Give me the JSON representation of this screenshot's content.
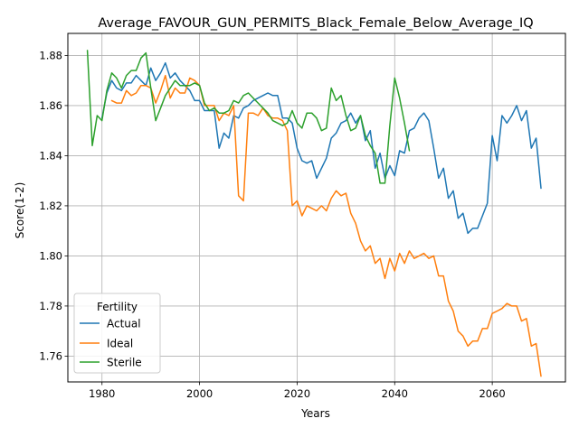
{
  "chart_data": {
    "type": "line",
    "title": "Average_FAVOUR_GUN_PERMITS_Black_Female_Below_Average_IQ",
    "xlabel": "Years",
    "ylabel": "Score(1-2)",
    "xlim": [
      1973,
      2075
    ],
    "ylim": [
      1.7497,
      1.8888
    ],
    "xticks": [
      1980,
      2000,
      2020,
      2040,
      2060
    ],
    "yticks": [
      1.76,
      1.78,
      1.8,
      1.82,
      1.84,
      1.86,
      1.88
    ],
    "ytick_labels": [
      "1.76",
      "1.78",
      "1.80",
      "1.82",
      "1.84",
      "1.86",
      "1.88"
    ],
    "grid": true,
    "legend": {
      "title": "Fertility",
      "position": "bottom-left"
    },
    "series": [
      {
        "name": "Actual",
        "color": "#1f77b4",
        "x": [
          1980,
          1981,
          1982,
          1983,
          1984,
          1985,
          1986,
          1987,
          1988,
          1989,
          1990,
          1991,
          1992,
          1993,
          1994,
          1995,
          1996,
          1997,
          1998,
          1999,
          2000,
          2001,
          2002,
          2003,
          2004,
          2005,
          2006,
          2007,
          2008,
          2009,
          2010,
          2011,
          2012,
          2013,
          2014,
          2015,
          2016,
          2017,
          2018,
          2019,
          2020,
          2021,
          2022,
          2023,
          2024,
          2025,
          2026,
          2027,
          2028,
          2029,
          2030,
          2031,
          2032,
          2033,
          2034,
          2035,
          2036,
          2037,
          2038,
          2039,
          2040,
          2041,
          2042,
          2043,
          2044,
          2045,
          2046,
          2047,
          2048,
          2049,
          2050,
          2051,
          2052,
          2053,
          2054,
          2055,
          2056,
          2057,
          2058,
          2059,
          2060,
          2061,
          2062,
          2063,
          2064,
          2065,
          2066,
          2067,
          2068,
          2069,
          2070
        ],
        "values": [
          1.855,
          1.865,
          1.87,
          1.867,
          1.866,
          1.869,
          1.869,
          1.872,
          1.87,
          1.868,
          1.875,
          1.87,
          1.873,
          1.877,
          1.871,
          1.873,
          1.87,
          1.868,
          1.866,
          1.862,
          1.862,
          1.858,
          1.858,
          1.858,
          1.843,
          1.849,
          1.847,
          1.856,
          1.855,
          1.859,
          1.86,
          1.862,
          1.863,
          1.864,
          1.865,
          1.864,
          1.864,
          1.855,
          1.855,
          1.853,
          1.843,
          1.838,
          1.837,
          1.838,
          1.831,
          1.835,
          1.839,
          1.847,
          1.849,
          1.853,
          1.854,
          1.857,
          1.853,
          1.856,
          1.846,
          1.85,
          1.835,
          1.841,
          1.831,
          1.836,
          1.832,
          1.842,
          1.841,
          1.85,
          1.851,
          1.855,
          1.857,
          1.854,
          1.843,
          1.831,
          1.835,
          1.823,
          1.826,
          1.815,
          1.817,
          1.809,
          1.811,
          1.811,
          1.816,
          1.821,
          1.848,
          1.838,
          1.856,
          1.853,
          1.856,
          1.86,
          1.854,
          1.858,
          1.843,
          1.847,
          1.827
        ]
      },
      {
        "name": "Ideal",
        "color": "#ff7f0e",
        "x": [
          1982,
          1983,
          1984,
          1985,
          1986,
          1987,
          1988,
          1989,
          1990,
          1991,
          1992,
          1993,
          1994,
          1995,
          1996,
          1997,
          1998,
          1999,
          2000,
          2001,
          2002,
          2003,
          2004,
          2005,
          2006,
          2007,
          2008,
          2009,
          2010,
          2011,
          2012,
          2013,
          2014,
          2015,
          2016,
          2017,
          2018,
          2019,
          2020,
          2021,
          2022,
          2023,
          2024,
          2025,
          2026,
          2027,
          2028,
          2029,
          2030,
          2031,
          2032,
          2033,
          2034,
          2035,
          2036,
          2037,
          2038,
          2039,
          2040,
          2041,
          2042,
          2043,
          2044,
          2045,
          2046,
          2047,
          2048,
          2049,
          2050,
          2051,
          2052,
          2053,
          2054,
          2055,
          2056,
          2057,
          2058,
          2059,
          2060,
          2061,
          2062,
          2063,
          2064,
          2065,
          2066,
          2067,
          2068,
          2069,
          2070
        ],
        "values": [
          1.862,
          1.861,
          1.861,
          1.866,
          1.864,
          1.865,
          1.868,
          1.868,
          1.867,
          1.861,
          1.866,
          1.872,
          1.863,
          1.867,
          1.865,
          1.865,
          1.871,
          1.87,
          1.868,
          1.86,
          1.86,
          1.86,
          1.854,
          1.857,
          1.856,
          1.86,
          1.824,
          1.822,
          1.857,
          1.857,
          1.856,
          1.859,
          1.856,
          1.855,
          1.855,
          1.854,
          1.85,
          1.82,
          1.822,
          1.816,
          1.82,
          1.819,
          1.818,
          1.82,
          1.818,
          1.823,
          1.826,
          1.824,
          1.825,
          1.817,
          1.813,
          1.806,
          1.802,
          1.804,
          1.797,
          1.799,
          1.791,
          1.799,
          1.794,
          1.801,
          1.797,
          1.802,
          1.799,
          1.8,
          1.801,
          1.799,
          1.8,
          1.792,
          1.792,
          1.782,
          1.778,
          1.77,
          1.768,
          1.764,
          1.766,
          1.766,
          1.771,
          1.771,
          1.777,
          1.778,
          1.779,
          1.781,
          1.78,
          1.78,
          1.774,
          1.775,
          1.764,
          1.765,
          1.752
        ]
      },
      {
        "name": "Sterile",
        "color": "#2ca02c",
        "x": [
          1977,
          1978,
          1979,
          1980,
          1981,
          1982,
          1983,
          1984,
          1985,
          1986,
          1987,
          1988,
          1989,
          1990,
          1991,
          1992,
          1993,
          1994,
          1995,
          1996,
          1997,
          1998,
          1999,
          2000,
          2001,
          2002,
          2003,
          2004,
          2005,
          2006,
          2007,
          2008,
          2009,
          2010,
          2011,
          2012,
          2013,
          2014,
          2015,
          2016,
          2017,
          2018,
          2019,
          2020,
          2021,
          2022,
          2023,
          2024,
          2025,
          2026,
          2027,
          2028,
          2029,
          2030,
          2031,
          2032,
          2033,
          2034,
          2035,
          2036,
          2037,
          2038,
          2039,
          2040,
          2041,
          2042,
          2043
        ],
        "values": [
          1.882,
          1.844,
          1.856,
          1.854,
          1.866,
          1.873,
          1.871,
          1.867,
          1.872,
          1.874,
          1.874,
          1.879,
          1.881,
          1.867,
          1.854,
          1.859,
          1.864,
          1.867,
          1.87,
          1.868,
          1.868,
          1.868,
          1.869,
          1.868,
          1.861,
          1.858,
          1.859,
          1.857,
          1.857,
          1.858,
          1.862,
          1.861,
          1.864,
          1.865,
          1.863,
          1.861,
          1.859,
          1.857,
          1.854,
          1.853,
          1.852,
          1.853,
          1.858,
          1.853,
          1.851,
          1.857,
          1.857,
          1.855,
          1.85,
          1.851,
          1.867,
          1.862,
          1.864,
          1.856,
          1.85,
          1.851,
          1.856,
          1.848,
          1.844,
          1.841,
          1.829,
          1.829,
          1.852,
          1.871,
          1.863,
          1.853,
          1.842
        ]
      }
    ]
  }
}
